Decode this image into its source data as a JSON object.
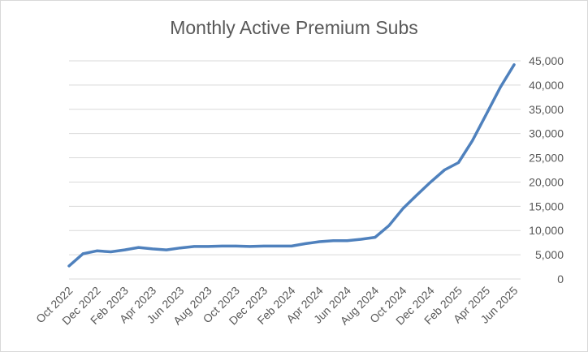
{
  "chart_data": {
    "type": "line",
    "title": "Monthly Active Premium Subs",
    "xlabel": "",
    "ylabel": "",
    "ylim": [
      0,
      45000
    ],
    "yticks": [
      0,
      5000,
      10000,
      15000,
      20000,
      25000,
      30000,
      35000,
      40000,
      45000
    ],
    "ytick_labels": [
      "0",
      "5,000",
      "10,000",
      "15,000",
      "20,000",
      "25,000",
      "30,000",
      "35,000",
      "40,000",
      "45,000"
    ],
    "y_axis_position": "right",
    "grid": true,
    "legend": "none",
    "colors": {
      "line": "#4f81bd",
      "grid": "#d9d9d9",
      "text": "#595959"
    },
    "x": [
      "Oct 2022",
      "Nov 2022",
      "Dec 2022",
      "Jan 2023",
      "Feb 2023",
      "Mar 2023",
      "Apr 2023",
      "May 2023",
      "Jun 2023",
      "Jul 2023",
      "Aug 2023",
      "Sep 2023",
      "Oct 2023",
      "Nov 2023",
      "Dec 2023",
      "Jan 2024",
      "Feb 2024",
      "Mar 2024",
      "Apr 2024",
      "May 2024",
      "Jun 2024",
      "Jul 2024",
      "Aug 2024",
      "Sep 2024",
      "Oct 2024",
      "Nov 2024",
      "Dec 2024",
      "Jan 2025",
      "Feb 2025",
      "Mar 2025",
      "Apr 2025",
      "May 2025",
      "Jun 2025"
    ],
    "x_tick_labels": [
      "Oct 2022",
      "Dec 2022",
      "Feb 2023",
      "Apr 2023",
      "Jun 2023",
      "Aug 2023",
      "Oct 2023",
      "Dec 2023",
      "Feb 2024",
      "Apr 2024",
      "Jun 2024",
      "Aug 2024",
      "Oct 2024",
      "Dec 2024",
      "Feb 2025",
      "Apr 2025",
      "Jun 2025"
    ],
    "series": [
      {
        "values": [
          2700,
          5200,
          5800,
          5600,
          6000,
          6500,
          6200,
          6000,
          6400,
          6700,
          6700,
          6800,
          6800,
          6700,
          6800,
          6800,
          6800,
          7300,
          7700,
          7900,
          7900,
          8200,
          8600,
          11000,
          14500,
          17300,
          20000,
          22500,
          24000,
          28500,
          34000,
          39500,
          44200
        ]
      }
    ]
  }
}
